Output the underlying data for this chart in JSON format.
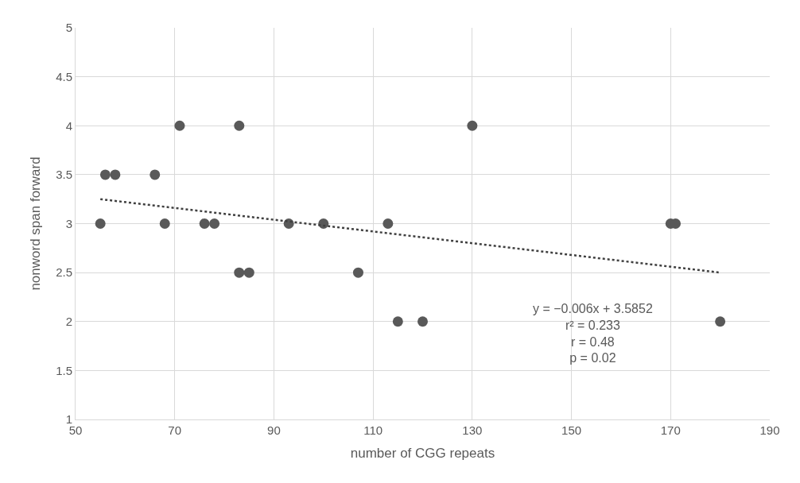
{
  "chart_data": {
    "type": "scatter",
    "xlabel": "number of CGG repeats",
    "ylabel": "nonword span forward",
    "xlim": [
      50,
      190
    ],
    "xticks": [
      50,
      70,
      90,
      110,
      130,
      150,
      170,
      190
    ],
    "ylim": [
      1,
      5
    ],
    "yticks": [
      1,
      1.5,
      2,
      2.5,
      3,
      3.5,
      4,
      4.5,
      5
    ],
    "grid": true,
    "legend": false,
    "marker": "circle",
    "series": [
      {
        "color": "#595959",
        "x": [
          55,
          56,
          58,
          66,
          68,
          71,
          76,
          78,
          83,
          83,
          85,
          93,
          100,
          107,
          113,
          115,
          120,
          130,
          170,
          171,
          180
        ],
        "values": [
          3,
          3.5,
          3.5,
          3.5,
          3,
          4,
          3,
          3,
          4,
          2.5,
          2.5,
          3,
          3,
          2.5,
          3,
          2,
          2,
          4,
          3,
          3,
          2
        ]
      },
      {
        "type": "line",
        "color": "#404040",
        "line_style": "dotted",
        "marker": "none",
        "x": [
          55,
          180
        ],
        "values": [
          3.25,
          2.5
        ]
      }
    ],
    "annotations": [
      "y = −0.006x + 3.5852",
      "r² = 0.233",
      "r = 0.48",
      "p = 0.02"
    ]
  }
}
